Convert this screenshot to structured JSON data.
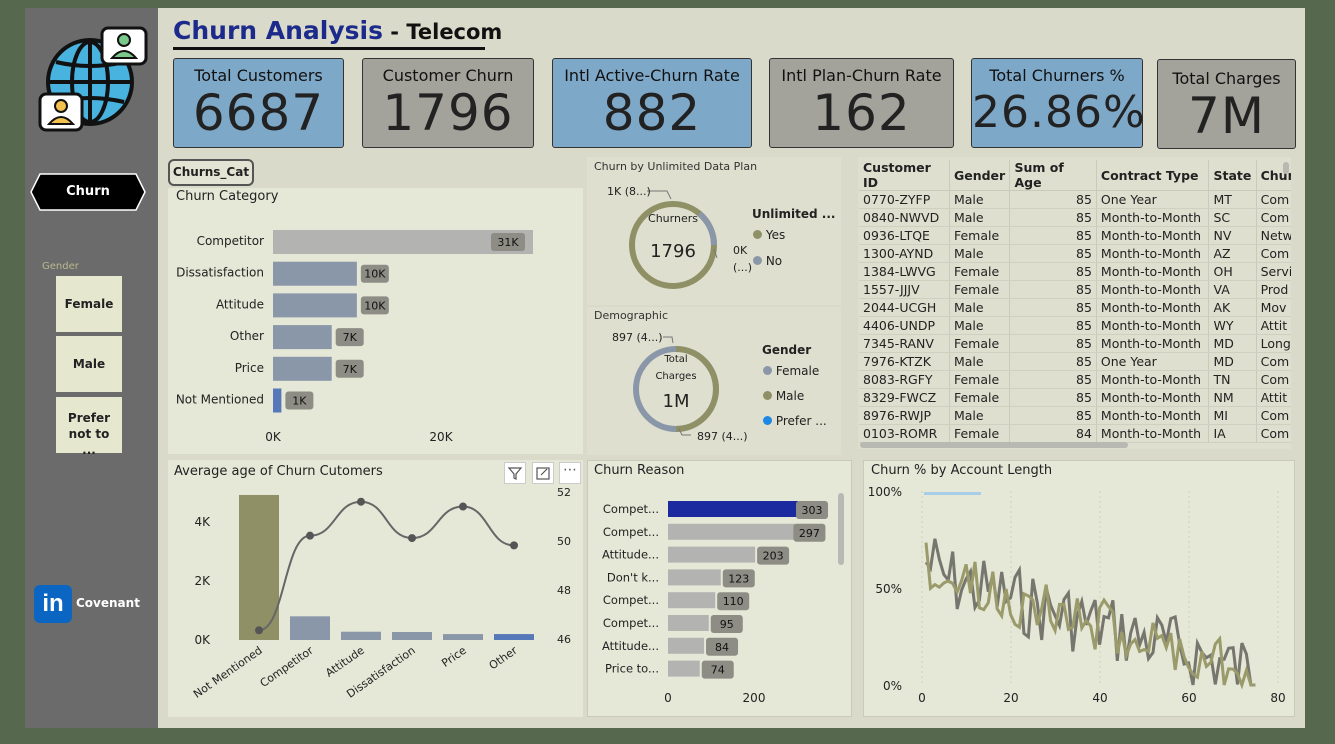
{
  "title": {
    "main": "Churn Analysis",
    "sub": " - Telecom"
  },
  "kpis": [
    {
      "label": "Total Customers",
      "value": "6687"
    },
    {
      "label": "Customer Churn",
      "value": "1796"
    },
    {
      "label": "Intl Active-Churn Rate",
      "value": "882"
    },
    {
      "label": "Intl Plan-Churn Rate",
      "value": "162"
    },
    {
      "label": "Total Churners %",
      "value": "26.86%"
    },
    {
      "label": "Total Charges",
      "value": "7M"
    }
  ],
  "sidebar": {
    "churn_button": "Churn",
    "gender_label": "Gender",
    "gender_buttons": [
      "Female",
      "Male",
      "Prefer not to ..."
    ],
    "brand": "Covenant"
  },
  "churns_cat_button": "Churns_Cat",
  "churn_category": {
    "title": "Churn Category",
    "categories": [
      "Competitor",
      "Dissatisfaction",
      "Attitude",
      "Other",
      "Price",
      "Not Mentioned"
    ],
    "labels": [
      "31K",
      "10K",
      "10K",
      "7K",
      "7K",
      "1K"
    ],
    "values": [
      31000,
      10000,
      10000,
      7000,
      7000,
      1000
    ],
    "x_ticks": [
      "0K",
      "20K"
    ]
  },
  "unlimited": {
    "title": "Churn by Unlimited Data Plan",
    "center_label": "Churners",
    "center_value": "1796",
    "label_top": "1K (8...)",
    "label_right1": "0K",
    "label_right2": "(...)",
    "legend_title": "Unlimited ...",
    "legend": [
      "Yes",
      "No"
    ]
  },
  "demographic": {
    "title": "Demographic",
    "center_label1": "Total",
    "center_label2": "Charges",
    "center_value": "1M",
    "label_top": "897 (4...)",
    "label_bottom": "897 (4...)",
    "legend_title": "Gender",
    "legend": [
      "Female",
      "Male",
      "Prefer ..."
    ]
  },
  "table": {
    "columns": [
      "Customer ID",
      "Gender",
      "Sum of Age",
      "Contract Type",
      "State",
      "Chur"
    ],
    "rows": [
      [
        "0770-ZYFP",
        "Male",
        "85",
        "One Year",
        "MT",
        "Com"
      ],
      [
        "0840-NWVD",
        "Male",
        "85",
        "Month-to-Month",
        "SC",
        "Com"
      ],
      [
        "0936-LTQE",
        "Female",
        "85",
        "Month-to-Month",
        "NV",
        "Netw"
      ],
      [
        "1300-AYND",
        "Male",
        "85",
        "Month-to-Month",
        "AZ",
        "Com"
      ],
      [
        "1384-LWVG",
        "Female",
        "85",
        "Month-to-Month",
        "OH",
        "Servi"
      ],
      [
        "1557-JJJV",
        "Female",
        "85",
        "Month-to-Month",
        "VA",
        "Prod"
      ],
      [
        "2044-UCGH",
        "Male",
        "85",
        "Month-to-Month",
        "AK",
        "Mov"
      ],
      [
        "4406-UNDP",
        "Male",
        "85",
        "Month-to-Month",
        "WY",
        "Attit"
      ],
      [
        "7345-RANV",
        "Female",
        "85",
        "Month-to-Month",
        "MD",
        "Long"
      ],
      [
        "7976-KTZK",
        "Male",
        "85",
        "One Year",
        "MD",
        "Com"
      ],
      [
        "8083-RGFY",
        "Female",
        "85",
        "Month-to-Month",
        "TN",
        "Com"
      ],
      [
        "8329-FWCZ",
        "Female",
        "85",
        "Month-to-Month",
        "NM",
        "Attit"
      ],
      [
        "8976-RWJP",
        "Male",
        "85",
        "Month-to-Month",
        "MI",
        "Com"
      ],
      [
        "0103-ROMR",
        "Female",
        "84",
        "Month-to-Month",
        "IA",
        "Com"
      ]
    ]
  },
  "avg_age": {
    "title": "Average age of Churn Cutomers",
    "categories": [
      "Not Mentioned",
      "Competitor",
      "Attitude",
      "Dissatisfaction",
      "Price",
      "Other"
    ],
    "bar_values": [
      4900,
      800,
      280,
      270,
      200,
      200
    ],
    "line_values": [
      46.3,
      50.2,
      51.6,
      50.1,
      51.4,
      49.8
    ],
    "y_left_ticks": [
      "4K",
      "2K",
      "0K"
    ],
    "y_right_ticks": [
      "52",
      "50",
      "48",
      "46"
    ]
  },
  "churn_reason": {
    "title": "Churn Reason",
    "categories": [
      "Compet...",
      "Compet...",
      "Attitude...",
      "Don't k...",
      "Compet...",
      "Compet...",
      "Attitude...",
      "Price to..."
    ],
    "values": [
      303,
      297,
      203,
      123,
      110,
      95,
      84,
      74
    ],
    "x_ticks": [
      "0",
      "200"
    ]
  },
  "churn_pct": {
    "title": "Churn % by Account Length",
    "y_ticks": [
      "100%",
      "50%",
      "0%"
    ],
    "x_ticks": [
      "0",
      "20",
      "40",
      "60",
      "80"
    ]
  },
  "colors": {
    "accent_blue": "#1c2a8c",
    "olive": "#8f9065",
    "slate": "#8a97a8"
  }
}
